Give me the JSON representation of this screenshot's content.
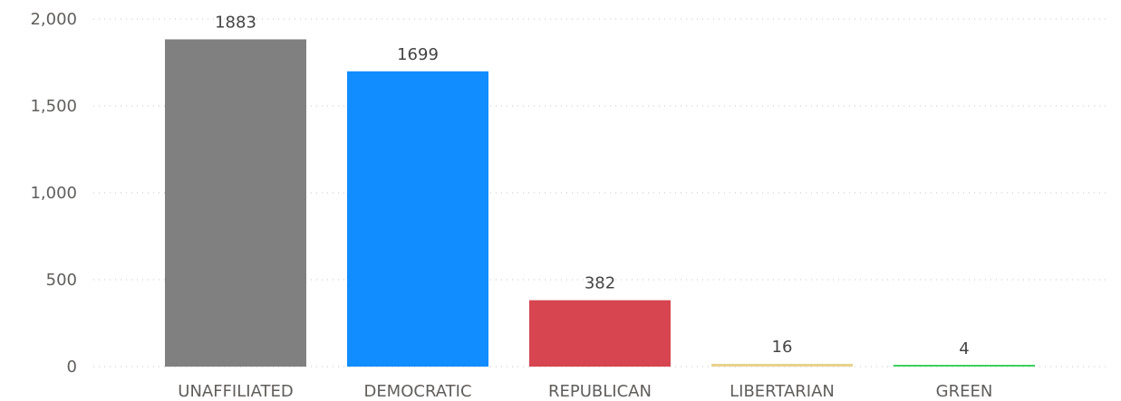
{
  "chart_data": {
    "type": "bar",
    "title": "",
    "xlabel": "",
    "ylabel": "",
    "categories": [
      "UNAFFILIATED",
      "DEMOCRATIC",
      "REPUBLICAN",
      "LIBERTARIAN",
      "GREEN"
    ],
    "values": [
      1883,
      1699,
      382,
      16,
      4
    ],
    "data_labels": [
      "1883",
      "1699",
      "382",
      "16",
      "4"
    ],
    "colors": [
      "#808080",
      "#118dff",
      "#d64550",
      "#e8d38c",
      "#3cd25a"
    ],
    "ylim": [
      0,
      2000
    ],
    "yticks": [
      0,
      500,
      1000,
      1500,
      2000
    ],
    "ytick_labels": [
      "0",
      "500",
      "1,000",
      "1,500",
      "2,000"
    ],
    "grid": true,
    "legend": "none"
  }
}
